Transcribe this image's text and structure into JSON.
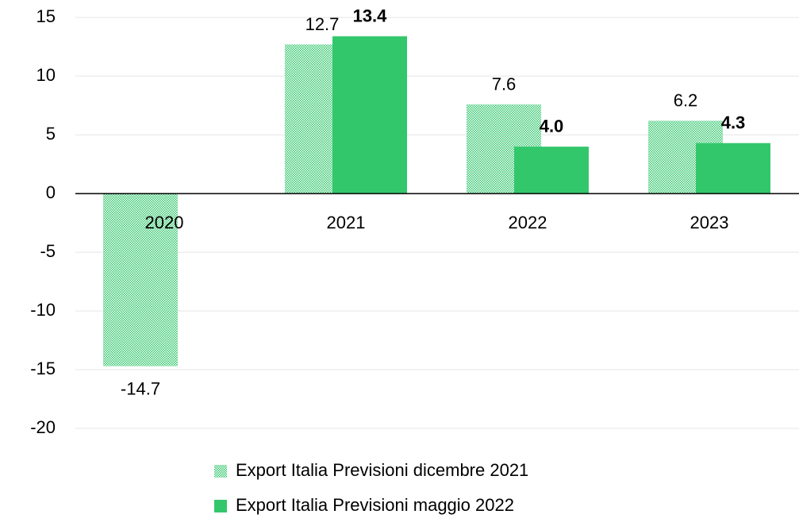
{
  "chart_data": {
    "type": "bar",
    "categories": [
      "2020",
      "2021",
      "2022",
      "2023"
    ],
    "series": [
      {
        "name": "Export Italia Previsioni dicembre 2021",
        "color": "#33c76c",
        "pattern": "dots",
        "values": [
          -14.7,
          12.7,
          7.6,
          6.2
        ]
      },
      {
        "name": "Export Italia Previsioni maggio 2022",
        "color": "#33c76c",
        "values": [
          null,
          13.4,
          4,
          4.3
        ],
        "value_labels": [
          null,
          "13.4",
          "4.0",
          "4.3"
        ]
      }
    ],
    "ylim": [
      -20,
      15
    ],
    "yticks": [
      -20,
      -15,
      -10,
      -5,
      0,
      5,
      10,
      15
    ],
    "grid": true
  }
}
